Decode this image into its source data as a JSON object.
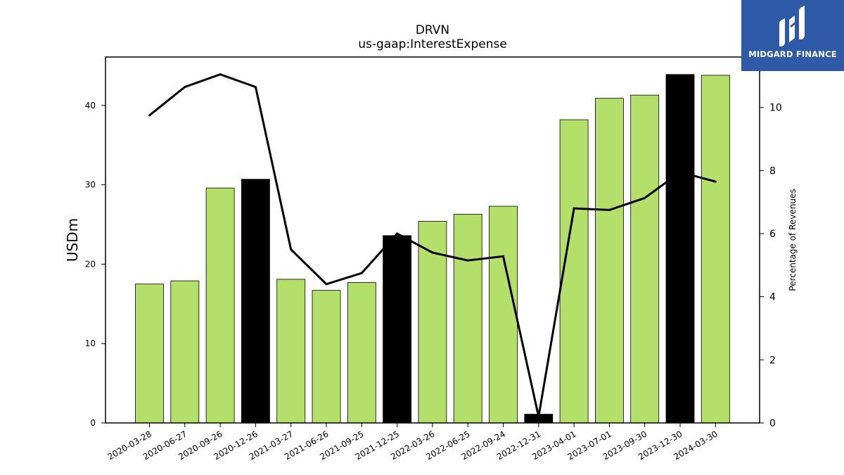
{
  "chart_data": {
    "type": "bar",
    "title": "DRVN",
    "subtitle": "us-gaap:InterestExpense",
    "ylabel": "USDm",
    "y2label": "Percentage of Revenues",
    "categories": [
      "2020-03-28",
      "2020-06-27",
      "2020-09-26",
      "2020-12-26",
      "2021-03-27",
      "2021-06-26",
      "2021-09-25",
      "2021-12-25",
      "2022-03-26",
      "2022-06-25",
      "2022-09-24",
      "2022-12-31",
      "2023-04-01",
      "2023-07-01",
      "2023-09-30",
      "2023-12-30",
      "2024-03-30"
    ],
    "series": [
      {
        "type": "bar",
        "axis": "left",
        "values": [
          17.5,
          17.9,
          29.6,
          30.7,
          18.1,
          16.7,
          17.7,
          23.6,
          25.4,
          26.3,
          27.3,
          1.1,
          38.2,
          40.9,
          41.3,
          43.9,
          43.8
        ],
        "colors": [
          "#b3df6a",
          "#b3df6a",
          "#b3df6a",
          "#000000",
          "#b3df6a",
          "#b3df6a",
          "#b3df6a",
          "#000000",
          "#b3df6a",
          "#b3df6a",
          "#b3df6a",
          "#000000",
          "#b3df6a",
          "#b3df6a",
          "#b3df6a",
          "#000000",
          "#b3df6a"
        ]
      },
      {
        "type": "line",
        "axis": "right",
        "values": [
          9.75,
          10.65,
          11.05,
          10.65,
          5.5,
          4.4,
          4.75,
          6.0,
          5.4,
          5.15,
          5.28,
          0.2,
          6.8,
          6.75,
          7.13,
          7.95,
          7.65
        ],
        "color": "#000000"
      }
    ],
    "ylim": [
      0,
      46.1
    ],
    "y2lim": [
      0,
      11.6
    ],
    "yticks": [
      "0",
      "10",
      "20",
      "30",
      "40"
    ],
    "y2ticks": [
      "0",
      "2",
      "4",
      "6",
      "8",
      "10"
    ],
    "grid": false,
    "bar_color": "#b3df6a",
    "highlight_color": "#000000"
  },
  "logo": {
    "text": "MIDGARD FINANCE",
    "background": "#2e5aa8"
  }
}
